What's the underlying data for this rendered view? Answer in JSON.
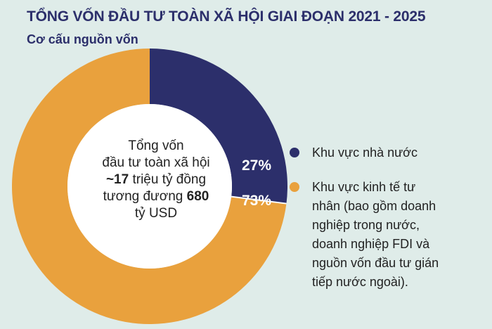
{
  "header": {
    "title": "TỔNG VỐN ĐẦU TƯ TOÀN XÃ HỘI GIAI ĐOẠN 2021 - 2025",
    "subtitle": "Cơ cấu nguồn vốn"
  },
  "center": {
    "line1": "Tổng vốn",
    "line2": "đầu tư toàn xã hội",
    "line3_bold": "~17",
    "line3_rest": " triệu tỷ đồng",
    "line4_rest": "tương đương ",
    "line4_bold": "680",
    "line5": "tỷ USD"
  },
  "chart_data": {
    "type": "pie",
    "donut": true,
    "title": "TỔNG VỐN ĐẦU TƯ TOÀN XÃ HỘI GIAI ĐOẠN 2021 - 2025",
    "subtitle": "Cơ cấu nguồn vốn",
    "slices": [
      {
        "name": "Khu vực nhà nước",
        "value": 27,
        "label": "27%",
        "color": "#2c2f6b",
        "legend_lines": [
          "Khu vực nhà nước"
        ]
      },
      {
        "name": "Khu vực kinh tế tư nhân (bao gồm doanh nghiệp trong nước, doanh nghiệp FDI và nguồn vốn đầu tư gián tiếp nước ngoài).",
        "value": 73,
        "label": "73%",
        "color": "#e9a13d",
        "legend_lines": [
          "Khu vực kinh tế tư",
          "nhân (bao gồm doanh",
          "nghiệp trong nước,",
          "doanh nghiệp FDI và",
          "nguồn vốn đầu tư gián",
          "tiếp nước ngoài)."
        ]
      }
    ],
    "legend_position": "right"
  },
  "colors": {
    "background": "#dfece9",
    "title": "#2c2f6b"
  }
}
